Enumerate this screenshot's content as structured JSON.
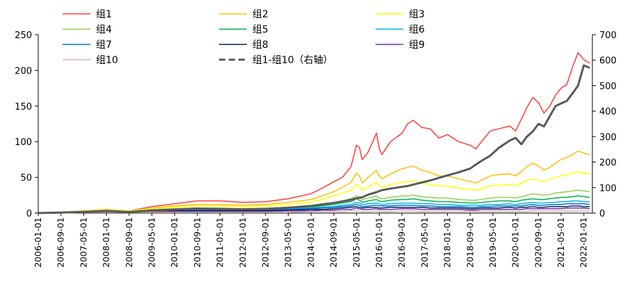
{
  "chart_data": {
    "type": "line",
    "title": "",
    "xlabel": "",
    "ylabel": "",
    "grid": false,
    "legend_position": "top",
    "left_axis": {
      "min": 0,
      "max": 250,
      "ticks": [
        0,
        50,
        100,
        150,
        200,
        250
      ],
      "tick_labels": [
        "0",
        "50",
        "100",
        "150",
        "200",
        "250"
      ]
    },
    "right_axis": {
      "min": 0,
      "max": 700,
      "ticks": [
        0,
        100,
        200,
        300,
        400,
        500,
        600,
        700
      ],
      "tick_labels": [
        "0",
        "100",
        "200",
        "300",
        "400",
        "500",
        "600",
        "700"
      ]
    },
    "x_tick_labels": [
      "2006-01-01",
      "2006-09-01",
      "2007-05-01",
      "2008-01-01",
      "2008-09-01",
      "2009-05-01",
      "2010-01-01",
      "2010-09-01",
      "2011-05-01",
      "2012-01-01",
      "2012-09-01",
      "2013-05-01",
      "2014-01-01",
      "2014-09-01",
      "2015-05-01",
      "2016-01-01",
      "2016-09-01",
      "2017-05-01",
      "2018-01-01",
      "2018-09-01",
      "2019-05-01",
      "2020-01-01",
      "2020-09-01",
      "2021-05-01",
      "2022-01-01"
    ],
    "x": [
      2006.0,
      2006.67,
      2007.33,
      2008.0,
      2008.67,
      2009.33,
      2010.0,
      2010.67,
      2011.33,
      2012.0,
      2012.67,
      2013.33,
      2014.0,
      2014.33,
      2014.67,
      2014.92,
      2015.17,
      2015.33,
      2015.42,
      2015.5,
      2015.67,
      2015.92,
      2016.0,
      2016.08,
      2016.33,
      2016.67,
      2016.83,
      2017.0,
      2017.25,
      2017.5,
      2017.75,
      2018.0,
      2018.33,
      2018.67,
      2018.83,
      2019.0,
      2019.25,
      2019.5,
      2019.83,
      2020.0,
      2020.17,
      2020.33,
      2020.5,
      2020.67,
      2020.83,
      2021.0,
      2021.17,
      2021.33,
      2021.5,
      2021.67,
      2021.83,
      2022.0,
      2022.17
    ],
    "series": [
      {
        "name": "组1",
        "axis": "left",
        "color": "#ff3b3b",
        "dash": "none",
        "values": [
          0,
          1,
          3,
          5,
          3,
          9,
          13,
          17,
          17,
          15,
          16,
          20,
          27,
          35,
          44,
          50,
          65,
          95,
          92,
          75,
          85,
          112,
          90,
          82,
          100,
          112,
          125,
          130,
          120,
          118,
          105,
          110,
          100,
          95,
          90,
          100,
          115,
          118,
          122,
          115,
          132,
          148,
          162,
          155,
          140,
          150,
          165,
          175,
          180,
          205,
          225,
          215,
          210
        ]
      },
      {
        "name": "组2",
        "axis": "left",
        "color": "#ffc000",
        "dash": "none",
        "values": [
          0,
          1,
          3,
          5,
          3,
          7,
          10,
          12,
          12,
          11,
          12,
          15,
          19,
          24,
          30,
          36,
          43,
          56,
          52,
          42,
          50,
          60,
          52,
          48,
          55,
          62,
          64,
          66,
          60,
          57,
          52,
          52,
          48,
          44,
          42,
          46,
          52,
          54,
          55,
          52,
          58,
          65,
          70,
          66,
          60,
          64,
          70,
          75,
          78,
          82,
          87,
          84,
          82
        ]
      },
      {
        "name": "组3",
        "axis": "left",
        "color": "#ffff00",
        "dash": "none",
        "values": [
          0,
          1,
          3,
          4,
          3,
          6,
          8,
          10,
          10,
          9,
          10,
          12,
          15,
          19,
          24,
          28,
          32,
          40,
          38,
          32,
          36,
          44,
          38,
          36,
          40,
          43,
          44,
          45,
          42,
          40,
          38,
          38,
          35,
          33,
          32,
          34,
          38,
          39,
          40,
          38,
          42,
          46,
          48,
          46,
          44,
          47,
          50,
          52,
          54,
          56,
          58,
          56,
          55
        ]
      },
      {
        "name": "组4",
        "axis": "left",
        "color": "#92d050",
        "dash": "none",
        "values": [
          0,
          1,
          2,
          4,
          2,
          5,
          6,
          7,
          7,
          6,
          7,
          8,
          10,
          12,
          15,
          17,
          20,
          24,
          23,
          19,
          21,
          24,
          21,
          20,
          22,
          24,
          24,
          25,
          23,
          22,
          21,
          21,
          19,
          18,
          18,
          19,
          21,
          22,
          22,
          21,
          23,
          25,
          27,
          26,
          25,
          26,
          28,
          29,
          30,
          31,
          32,
          31,
          30
        ]
      },
      {
        "name": "组5",
        "axis": "left",
        "color": "#00b050",
        "dash": "none",
        "values": [
          0,
          1,
          2,
          3,
          2,
          4,
          5,
          6,
          6,
          5,
          6,
          7,
          8,
          10,
          12,
          14,
          16,
          20,
          18,
          15,
          17,
          19,
          17,
          16,
          18,
          19,
          19,
          20,
          18,
          17,
          16,
          16,
          15,
          14,
          14,
          15,
          16,
          17,
          17,
          16,
          18,
          19,
          20,
          19,
          19,
          20,
          21,
          22,
          22,
          23,
          24,
          23,
          22
        ]
      },
      {
        "name": "组6",
        "axis": "left",
        "color": "#00b0f0",
        "dash": "none",
        "values": [
          0,
          1,
          2,
          3,
          2,
          3,
          4,
          5,
          5,
          4,
          5,
          6,
          7,
          8,
          9,
          11,
          12,
          15,
          14,
          12,
          13,
          14,
          13,
          12,
          13,
          14,
          14,
          14,
          13,
          13,
          12,
          12,
          11,
          11,
          11,
          11,
          12,
          12,
          13,
          12,
          13,
          14,
          15,
          14,
          14,
          15,
          15,
          16,
          16,
          17,
          17,
          16,
          16
        ]
      },
      {
        "name": "组7",
        "axis": "left",
        "color": "#0070c0",
        "dash": "none",
        "values": [
          0,
          1,
          2,
          3,
          2,
          3,
          4,
          4,
          4,
          4,
          4,
          5,
          6,
          7,
          8,
          9,
          10,
          12,
          11,
          9,
          10,
          11,
          10,
          10,
          10,
          11,
          11,
          11,
          10,
          10,
          9,
          9,
          9,
          8,
          8,
          9,
          9,
          10,
          10,
          10,
          10,
          11,
          12,
          11,
          11,
          12,
          12,
          12,
          13,
          13,
          13,
          13,
          12
        ]
      },
      {
        "name": "组8",
        "axis": "left",
        "color": "#002060",
        "dash": "none",
        "values": [
          0,
          1,
          2,
          2,
          1,
          2,
          3,
          3,
          3,
          3,
          3,
          4,
          5,
          5,
          6,
          7,
          8,
          9,
          8,
          7,
          8,
          8,
          7,
          7,
          8,
          8,
          8,
          8,
          8,
          7,
          7,
          7,
          7,
          6,
          6,
          7,
          7,
          7,
          8,
          7,
          8,
          8,
          9,
          8,
          8,
          9,
          9,
          9,
          9,
          10,
          10,
          9,
          9
        ]
      },
      {
        "name": "组9",
        "axis": "left",
        "color": "#7030a0",
        "dash": "none",
        "values": [
          0,
          1,
          1,
          2,
          1,
          2,
          2,
          2,
          2,
          2,
          2,
          3,
          3,
          4,
          4,
          5,
          5,
          7,
          6,
          5,
          5,
          6,
          5,
          5,
          5,
          6,
          6,
          6,
          5,
          5,
          5,
          5,
          5,
          4,
          4,
          5,
          5,
          5,
          5,
          5,
          5,
          6,
          6,
          6,
          6,
          6,
          6,
          6,
          7,
          7,
          7,
          7,
          6
        ]
      },
      {
        "name": "组10",
        "axis": "left",
        "color": "#d9b3b3",
        "dash": "none",
        "values": [
          0,
          0,
          1,
          1,
          1,
          1,
          1,
          1,
          1,
          1,
          1,
          1,
          2,
          2,
          2,
          2,
          3,
          3,
          3,
          2,
          2,
          3,
          2,
          2,
          2,
          3,
          3,
          3,
          2,
          2,
          2,
          2,
          2,
          2,
          2,
          2,
          2,
          2,
          2,
          2,
          2,
          2,
          3,
          3,
          3,
          3,
          3,
          3,
          3,
          3,
          3,
          3,
          3
        ]
      },
      {
        "name": "组1-组10（右轴）",
        "axis": "right",
        "color": "#595959",
        "dash": "dashed",
        "values": [
          0,
          2,
          5,
          8,
          4,
          10,
          14,
          18,
          16,
          15,
          16,
          21,
          28,
          34,
          40,
          46,
          52,
          58,
          60,
          62,
          72,
          82,
          86,
          90,
          96,
          103,
          106,
          112,
          120,
          128,
          138,
          148,
          160,
          175,
          190,
          205,
          225,
          255,
          285,
          295,
          270,
          300,
          320,
          350,
          340,
          380,
          420,
          430,
          440,
          470,
          500,
          580,
          570
        ]
      }
    ]
  }
}
